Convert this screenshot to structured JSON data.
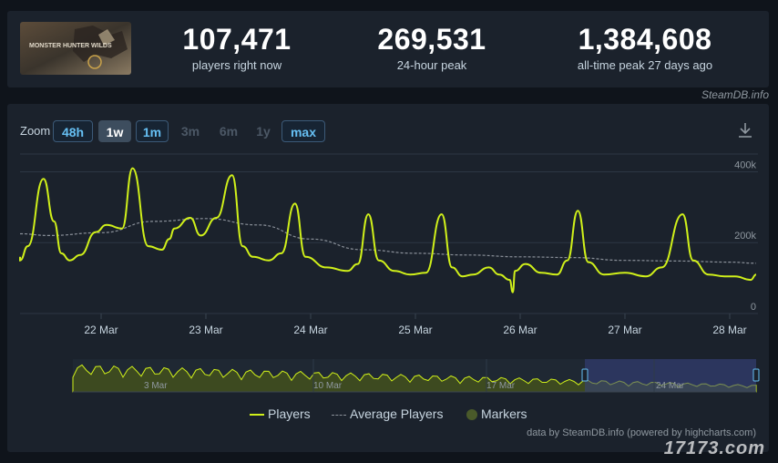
{
  "game": {
    "logo_text": "MONSTER HUNTER WILDS"
  },
  "stats": [
    {
      "value": "107,471",
      "label": "players right now"
    },
    {
      "value": "269,531",
      "label": "24-hour peak"
    },
    {
      "value": "1,384,608",
      "label": "all-time peak 27 days ago"
    }
  ],
  "source_label": "SteamDB.info",
  "zoom": {
    "label": "Zoom",
    "buttons": [
      {
        "label": "48h",
        "state": "active"
      },
      {
        "label": "1w",
        "state": "selected"
      },
      {
        "label": "1m",
        "state": "active"
      },
      {
        "label": "3m",
        "state": "disabled"
      },
      {
        "label": "6m",
        "state": "disabled"
      },
      {
        "label": "1y",
        "state": "disabled"
      },
      {
        "label": "max",
        "state": "active"
      }
    ]
  },
  "colors": {
    "players": "#d0f01a",
    "average": "#8a9099",
    "markers": "#4a5a2a",
    "navigator_fill": "#3d4a20",
    "navigator_selection": "#364282"
  },
  "legend": {
    "players": "Players",
    "average": "Average Players",
    "markers": "Markers"
  },
  "credit": "data by SteamDB.info (powered by highcharts.com)",
  "watermark": "17173.com",
  "chart_data": {
    "type": "line",
    "x_start": "21 Mar",
    "x_end": "28 Mar",
    "x_tick_labels": [
      "22 Mar",
      "23 Mar",
      "24 Mar",
      "25 Mar",
      "26 Mar",
      "27 Mar",
      "28 Mar"
    ],
    "y_tick_labels": [
      "0",
      "200k",
      "400k"
    ],
    "ylim": [
      0,
      450000
    ],
    "grid": true,
    "legend_position": "bottom-center",
    "series": [
      {
        "name": "Players",
        "x_days": [
          0,
          0.15,
          0.3,
          0.45,
          0.55,
          0.62,
          0.7,
          0.8,
          0.95,
          1.05,
          1.2,
          1.3,
          1.45,
          1.58,
          1.65,
          1.7,
          1.85,
          1.95,
          2.1,
          2.25,
          2.35,
          2.45,
          2.6,
          2.72,
          2.85,
          2.95,
          3.15,
          3.35,
          3.45,
          3.55,
          3.65,
          3.8,
          3.95,
          4.1,
          4.25,
          4.35,
          4.45,
          4.55,
          4.7,
          4.8,
          4.9,
          4.93,
          4.95,
          5.05,
          5.2,
          5.35,
          5.45,
          5.55,
          5.65,
          5.8,
          6.0,
          6.2,
          6.35,
          6.55,
          6.65,
          6.8,
          6.95,
          7.05,
          7.2,
          7.3,
          7.4
        ],
        "values": [
          160000,
          150000,
          190000,
          380000,
          260000,
          170000,
          150000,
          165000,
          230000,
          250000,
          240000,
          410000,
          190000,
          180000,
          210000,
          240000,
          270000,
          220000,
          270000,
          390000,
          190000,
          160000,
          150000,
          170000,
          310000,
          160000,
          130000,
          120000,
          140000,
          280000,
          150000,
          120000,
          110000,
          115000,
          280000,
          130000,
          105000,
          110000,
          130000,
          110000,
          95000,
          60000,
          120000,
          140000,
          115000,
          110000,
          150000,
          290000,
          145000,
          110000,
          115000,
          105000,
          130000,
          280000,
          150000,
          110000,
          105000,
          105000,
          95000,
          110000,
          110000
        ]
      },
      {
        "name": "Average Players",
        "x_days": [
          0,
          0.5,
          1.0,
          1.5,
          2.0,
          2.5,
          3.0,
          3.5,
          4.0,
          4.5,
          5.0,
          5.5,
          6.0,
          6.5,
          7.0,
          7.4
        ],
        "values": [
          225000,
          220000,
          228000,
          260000,
          268000,
          250000,
          210000,
          180000,
          170000,
          165000,
          160000,
          158000,
          150000,
          148000,
          145000,
          142000
        ]
      }
    ]
  }
}
